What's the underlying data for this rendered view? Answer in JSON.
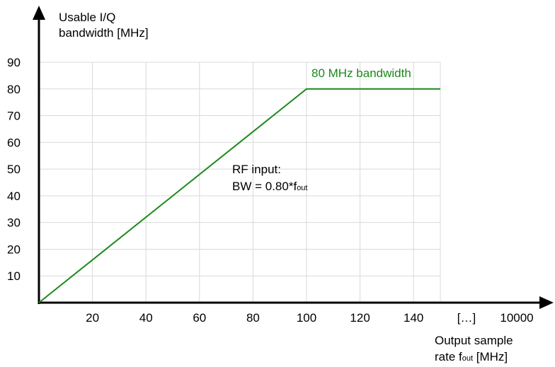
{
  "chart_data": {
    "type": "line",
    "title": "",
    "ylabel_line1": "Usable I/Q",
    "ylabel_line2": "bandwidth [MHz]",
    "xlabel_line1": "Output sample",
    "xlabel_line2_pre": "rate f",
    "xlabel_line2_sub": "out",
    "xlabel_line2_post": " [MHz]",
    "xlim": [
      0,
      150
    ],
    "ylim": [
      0,
      90
    ],
    "x_ticks": [
      {
        "value": 20,
        "label": "20"
      },
      {
        "value": 40,
        "label": "40"
      },
      {
        "value": 60,
        "label": "60"
      },
      {
        "value": 80,
        "label": "80"
      },
      {
        "value": 100,
        "label": "100"
      },
      {
        "value": 120,
        "label": "120"
      },
      {
        "value": 140,
        "label": "140"
      }
    ],
    "x_extra_ticks": [
      "[…]",
      "10000"
    ],
    "y_ticks": [
      10,
      20,
      30,
      40,
      50,
      60,
      70,
      80,
      90
    ],
    "grid": true,
    "series": [
      {
        "name": "",
        "color": "#1a8a1a",
        "x": [
          0,
          100,
          150
        ],
        "y": [
          0,
          80,
          80
        ]
      }
    ],
    "annotations": {
      "plateau": "80 MHz bandwidth",
      "rf_line1": "RF input:",
      "rf_line2_pre": "BW = 0.80*f",
      "rf_line2_sub": "out"
    }
  }
}
